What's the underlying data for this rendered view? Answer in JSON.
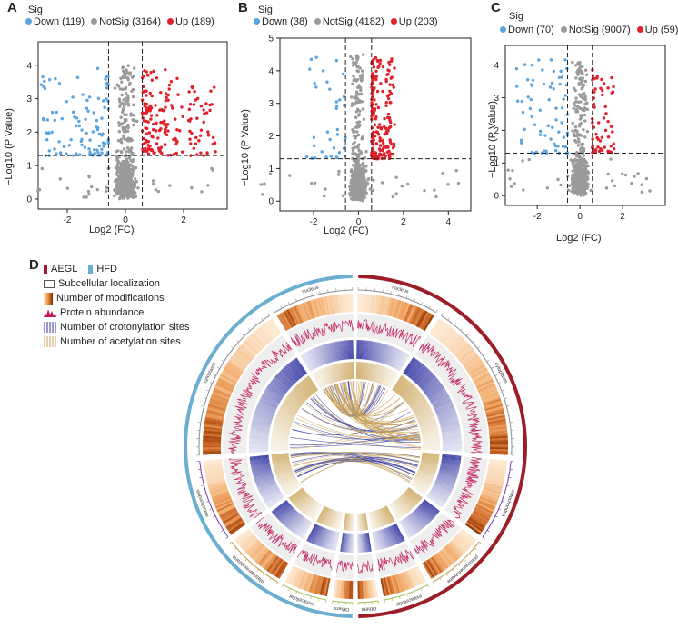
{
  "panels": [
    {
      "letter": "A",
      "sig": "Sig",
      "legend": [
        {
          "label": "Down (119)",
          "color": "#5aa5e0"
        },
        {
          "label": "NotSig (3164)",
          "color": "#9a9a9a"
        },
        {
          "label": "Up (189)",
          "color": "#e0202a"
        }
      ]
    },
    {
      "letter": "B",
      "sig": "Sig",
      "legend": [
        {
          "label": "Down (38)",
          "color": "#5aa5e0"
        },
        {
          "label": "NotSig (4182)",
          "color": "#9a9a9a"
        },
        {
          "label": "Up (203)",
          "color": "#e0202a"
        }
      ]
    },
    {
      "letter": "C",
      "sig": "Sig",
      "legend": [
        {
          "label": "Down (70)",
          "color": "#5aa5e0"
        },
        {
          "label": "NotSig (9007)",
          "color": "#9a9a9a"
        },
        {
          "label": "Up (59)",
          "color": "#e0202a"
        }
      ]
    }
  ],
  "chart_data": [
    {
      "type": "scatter",
      "title": "A",
      "xlabel": "Log2 (FC)",
      "ylabel": "−Log10 (P Value)",
      "xlim": [
        -3.0,
        3.5
      ],
      "ylim": [
        -0.3,
        4.7
      ],
      "xticks": [
        "-2",
        "0",
        "2"
      ],
      "xtick_values": [
        -2,
        0,
        2
      ],
      "yticks": [
        "0",
        "1",
        "2",
        "3",
        "4"
      ],
      "ytick_values": [
        0,
        1,
        2,
        3,
        4
      ],
      "fc_threshold": 0.58,
      "p_threshold": 1.3,
      "counts": {
        "down": 119,
        "notsig": 3164,
        "up": 189
      },
      "spread": {
        "down_xmin": -2.9,
        "up_xmax": 3.1,
        "ymax": 4.3
      }
    },
    {
      "type": "scatter",
      "title": "B",
      "xlabel": "Log2 (FC)",
      "ylabel": "−Log10 (P Value)",
      "xlim": [
        -3.5,
        5.0
      ],
      "ylim": [
        -0.3,
        5.0
      ],
      "xticks": [
        "-2",
        "0",
        "2",
        "4"
      ],
      "xtick_values": [
        -2,
        0,
        2,
        4
      ],
      "yticks": [
        "0",
        "1",
        "2",
        "3",
        "4",
        "5"
      ],
      "ytick_values": [
        0,
        1,
        2,
        3,
        4,
        5
      ],
      "fc_threshold": 0.58,
      "p_threshold": 1.3,
      "counts": {
        "down": 38,
        "notsig": 4182,
        "up": 203
      },
      "spread": {
        "down_xmin": -2.3,
        "up_xmax": 1.6,
        "ymax": 4.8
      }
    },
    {
      "type": "scatter",
      "title": "C",
      "xlabel": "Log2 (FC)",
      "ylabel": "−Log10 (P Value)",
      "xlim": [
        -3.5,
        4.0
      ],
      "ylim": [
        -0.3,
        4.6
      ],
      "xticks": [
        "-2",
        "0",
        "2"
      ],
      "xtick_values": [
        -2,
        0,
        2
      ],
      "yticks": [
        "0",
        "1",
        "2",
        "3",
        "4"
      ],
      "ytick_values": [
        0,
        1,
        2,
        3,
        4
      ],
      "fc_threshold": 0.58,
      "p_threshold": 1.3,
      "counts": {
        "down": 70,
        "notsig": 9007,
        "up": 59
      },
      "spread": {
        "down_xmin": -3.0,
        "up_xmax": 1.6,
        "ymax": 4.4
      }
    }
  ],
  "circos": {
    "letter": "D",
    "legend": [
      {
        "label": "AEGL",
        "kind": "group",
        "color": "#9c1d27"
      },
      {
        "label": "HFD",
        "kind": "group",
        "color": "#6aaed0"
      },
      {
        "label": "Subcellular localization",
        "kind": "box"
      },
      {
        "label": "Number of modifications",
        "kind": "heat"
      },
      {
        "label": "Protein abundance",
        "kind": "abundance"
      },
      {
        "label": "Number of crotonylation sites",
        "kind": "crot"
      },
      {
        "label": "Number of acetylation sites",
        "kind": "acet"
      }
    ],
    "groups": [
      {
        "name": "AEGL",
        "color": "#9c1d27",
        "side": "right"
      },
      {
        "name": "HFD",
        "color": "#6aaed0",
        "side": "left"
      }
    ],
    "colors": {
      "crot": "#2b2f9e",
      "acet": "#c9a155",
      "abundance": "#c2185b",
      "heat_dark": "#7a2e05",
      "heat_light": "#fde9d2"
    },
    "sectors": [
      {
        "label": "nucleus",
        "weight": 16,
        "color": "#8a8a8a"
      },
      {
        "label": "cytoplasm",
        "weight": 32,
        "color": "#8a8a8a"
      },
      {
        "label": "mitochondria",
        "weight": 16,
        "color": "#7b3f9e"
      },
      {
        "label": "plasmamembrane",
        "weight": 12,
        "color": "#c39a4b"
      },
      {
        "label": "extracellular",
        "weight": 9,
        "color": "#9cc04a"
      },
      {
        "label": "Others",
        "weight": 4,
        "color": "#9cc04a"
      }
    ],
    "tick_labels": [
      "0",
      "200",
      "400",
      "600",
      "800",
      "1000",
      "1200"
    ]
  }
}
